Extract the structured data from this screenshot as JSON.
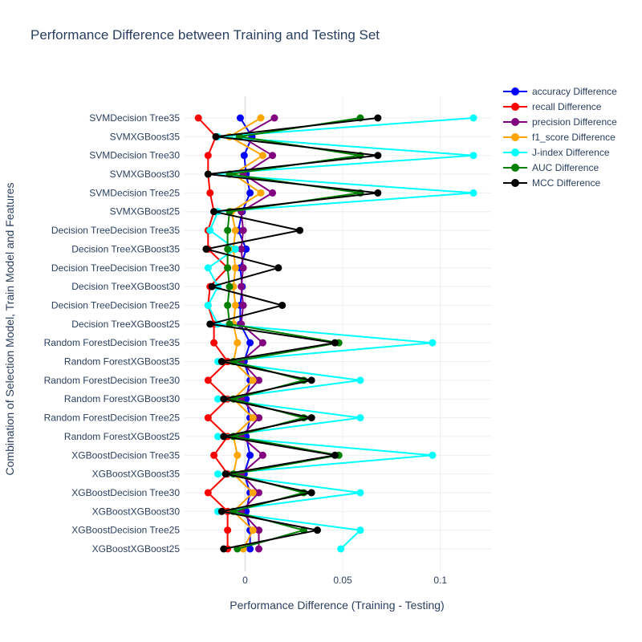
{
  "chart_data": {
    "type": "line",
    "title": "Performance Difference between Training and Testing Set",
    "xlabel": "Performance Difference (Training - Testing)",
    "ylabel": "Combination of Selection Model, Train Model and Features",
    "xlim": [
      -0.03,
      0.129
    ],
    "x_ticks": [
      0,
      0.05,
      0.1
    ],
    "x_tick_labels": [
      "0",
      "0.05",
      "0.1"
    ],
    "grid": true,
    "legend_position": "top-right",
    "categories": [
      "SVMDecision Tree35",
      "SVMXGBoost35",
      "SVMDecision Tree30",
      "SVMXGBoost30",
      "SVMDecision Tree25",
      "SVMXGBoost25",
      "Decision TreeDecision Tree35",
      "Decision TreeXGBoost35",
      "Decision TreeDecision Tree30",
      "Decision TreeXGBoost30",
      "Decision TreeDecision Tree25",
      "Decision TreeXGBoost25",
      "Random ForestDecision Tree35",
      "Random ForestXGBoost35",
      "Random ForestDecision Tree30",
      "Random ForestXGBoost30",
      "Random ForestDecision Tree25",
      "Random ForestXGBoost25",
      "XGBoostDecision Tree35",
      "XGBoostXGBoost35",
      "XGBoostDecision Tree30",
      "XGBoostXGBoost30",
      "XGBoostDecision Tree25",
      "XGBoostXGBoost25"
    ],
    "series": [
      {
        "name": "accuracy Difference",
        "color": "#0000ff",
        "values": [
          -0.0025,
          0.0035,
          -0.0005,
          0.0005,
          0.0025,
          -0.0015,
          -0.0035,
          0.0005,
          -0.0025,
          -0.0015,
          -0.0025,
          -0.0025,
          0.0025,
          -0.0005,
          0.0025,
          0.0005,
          0.0025,
          0.0005,
          0.0025,
          -0.0005,
          0.0025,
          0.0005,
          0.0025,
          0.0025
        ]
      },
      {
        "name": "recall Difference",
        "color": "#ff0000",
        "values": [
          -0.024,
          -0.015,
          -0.019,
          -0.019,
          -0.018,
          -0.016,
          -0.019,
          -0.019,
          -0.009,
          -0.018,
          -0.019,
          -0.016,
          -0.016,
          -0.009,
          -0.019,
          -0.009,
          -0.019,
          -0.009,
          -0.016,
          -0.009,
          -0.019,
          -0.009,
          -0.009,
          -0.009
        ]
      },
      {
        "name": "precision Difference",
        "color": "#800080",
        "values": [
          0.015,
          -0.002,
          0.014,
          -0.001,
          0.014,
          -0.002,
          -0.001,
          -0.002,
          -0.001,
          -0.002,
          -0.001,
          -0.002,
          0.009,
          -0.002,
          0.007,
          -0.002,
          0.007,
          -0.002,
          0.009,
          -0.002,
          0.007,
          -0.002,
          0.007,
          0.007
        ]
      },
      {
        "name": "f1_score Difference",
        "color": "#ffa500",
        "values": [
          0.008,
          -0.008,
          0.009,
          -0.006,
          0.008,
          -0.007,
          -0.005,
          -0.006,
          -0.005,
          -0.006,
          -0.005,
          -0.006,
          -0.004,
          -0.006,
          0.004,
          -0.006,
          0.004,
          -0.006,
          -0.004,
          -0.006,
          0.004,
          -0.006,
          0.004,
          -0.001
        ]
      },
      {
        "name": "J-index Difference",
        "color": "#00ffff",
        "values": [
          0.117,
          -0.014,
          0.117,
          -0.019,
          0.117,
          -0.014,
          -0.018,
          -0.005,
          -0.019,
          -0.014,
          -0.019,
          -0.014,
          0.096,
          -0.014,
          0.059,
          -0.014,
          0.059,
          -0.014,
          0.096,
          -0.014,
          0.059,
          -0.014,
          0.059,
          0.049
        ]
      },
      {
        "name": "AUC Difference",
        "color": "#008000",
        "values": [
          0.059,
          -0.003,
          0.059,
          -0.008,
          0.059,
          -0.008,
          -0.009,
          -0.009,
          -0.009,
          -0.008,
          -0.009,
          -0.008,
          0.048,
          -0.006,
          0.03,
          -0.006,
          0.03,
          -0.006,
          0.048,
          -0.006,
          0.03,
          -0.006,
          0.03,
          -0.004
        ]
      },
      {
        "name": "MCC Difference",
        "color": "#000000",
        "values": [
          0.068,
          -0.015,
          0.068,
          -0.019,
          0.068,
          -0.016,
          0.028,
          -0.02,
          0.017,
          -0.017,
          0.019,
          -0.018,
          0.046,
          -0.012,
          0.034,
          -0.011,
          0.034,
          -0.011,
          0.046,
          -0.01,
          0.034,
          -0.012,
          0.037,
          -0.011
        ]
      }
    ]
  }
}
